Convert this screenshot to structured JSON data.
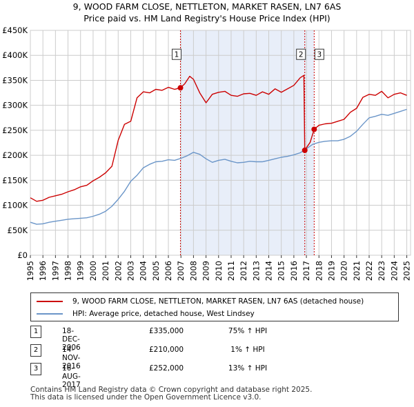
{
  "chart_data": {
    "type": "line",
    "title": "9, WOOD FARM CLOSE, NETTLETON, MARKET RASEN, LN7 6AS",
    "subtitle": "Price paid vs. HM Land Registry's House Price Index (HPI)",
    "xlim": [
      1995,
      2025.3
    ],
    "ylim": [
      0,
      450000
    ],
    "y_ticks": [
      0,
      50000,
      100000,
      150000,
      200000,
      250000,
      300000,
      350000,
      400000,
      450000
    ],
    "y_tick_labels": [
      "£0",
      "£50K",
      "£100K",
      "£150K",
      "£200K",
      "£250K",
      "£300K",
      "£350K",
      "£400K",
      "£450K"
    ],
    "x_tick_labels": [
      "1995",
      "1996",
      "1997",
      "1998",
      "1999",
      "2000",
      "2001",
      "2002",
      "2003",
      "2004",
      "2005",
      "2006",
      "2007",
      "2008",
      "2009",
      "2010",
      "2011",
      "2012",
      "2013",
      "2014",
      "2015",
      "2016",
      "2017",
      "2018",
      "2019",
      "2020",
      "2021",
      "2022",
      "2023",
      "2024",
      "2025"
    ],
    "grid": true,
    "shaded_region": [
      2006.96,
      2017.62
    ],
    "series": [
      {
        "name": "9, WOOD FARM CLOSE, NETTLETON, MARKET RASEN, LN7 6AS (detached house)",
        "color": "#cc0000",
        "x": [
          1995,
          1995.5,
          1996,
          1996.5,
          1997,
          1997.5,
          1998,
          1998.5,
          1999,
          1999.5,
          2000,
          2000.5,
          2001,
          2001.5,
          2002,
          2002.5,
          2003,
          2003.5,
          2004,
          2004.5,
          2005,
          2005.5,
          2006,
          2006.5,
          2006.96,
          2007.3,
          2007.7,
          2008,
          2008.5,
          2009,
          2009.5,
          2010,
          2010.5,
          2011,
          2011.5,
          2012,
          2012.5,
          2013,
          2013.5,
          2014,
          2014.5,
          2015,
          2015.5,
          2016,
          2016.5,
          2016.8,
          2016.87,
          2017,
          2017.3,
          2017.62,
          2018,
          2018.5,
          2019,
          2019.5,
          2020,
          2020.5,
          2021,
          2021.5,
          2022,
          2022.5,
          2023,
          2023.5,
          2024,
          2024.5,
          2025
        ],
        "values": [
          115000,
          108000,
          110000,
          116000,
          119000,
          122000,
          127000,
          131000,
          137000,
          140000,
          149000,
          156000,
          165000,
          178000,
          230000,
          262000,
          268000,
          315000,
          327000,
          325000,
          332000,
          330000,
          336000,
          332000,
          335000,
          343000,
          358000,
          352000,
          325000,
          305000,
          322000,
          326000,
          328000,
          320000,
          318000,
          323000,
          324000,
          320000,
          327000,
          322000,
          333000,
          326000,
          333000,
          340000,
          355000,
          360000,
          210000,
          215000,
          226000,
          252000,
          260000,
          263000,
          264000,
          268000,
          272000,
          286000,
          294000,
          316000,
          322000,
          320000,
          328000,
          315000,
          322000,
          325000,
          320000
        ]
      },
      {
        "name": "HPI: Average price, detached house, West Lindsey",
        "color": "#6a95c8",
        "x": [
          1995,
          1995.5,
          1996,
          1996.5,
          1997,
          1997.5,
          1998,
          1998.5,
          1999,
          1999.5,
          2000,
          2000.5,
          2001,
          2001.5,
          2002,
          2002.5,
          2003,
          2003.5,
          2004,
          2004.5,
          2005,
          2005.5,
          2006,
          2006.5,
          2007,
          2007.5,
          2008,
          2008.5,
          2009,
          2009.5,
          2010,
          2010.5,
          2011,
          2011.5,
          2012,
          2012.5,
          2013,
          2013.5,
          2014,
          2014.5,
          2015,
          2015.5,
          2016,
          2016.5,
          2017,
          2017.5,
          2018,
          2018.5,
          2019,
          2019.5,
          2020,
          2020.5,
          2021,
          2021.5,
          2022,
          2022.5,
          2023,
          2023.5,
          2024,
          2024.5,
          2025
        ],
        "values": [
          66000,
          62000,
          63000,
          66000,
          68000,
          70000,
          72000,
          73000,
          74000,
          75000,
          78000,
          82000,
          88000,
          98000,
          112000,
          128000,
          148000,
          160000,
          175000,
          182000,
          187000,
          188000,
          191000,
          190000,
          194000,
          199000,
          206000,
          202000,
          193000,
          186000,
          190000,
          192000,
          188000,
          185000,
          186000,
          188000,
          187000,
          187000,
          190000,
          193000,
          196000,
          198000,
          201000,
          205000,
          213000,
          222000,
          226000,
          228000,
          229000,
          229000,
          232000,
          238000,
          248000,
          262000,
          275000,
          278000,
          282000,
          280000,
          284000,
          288000,
          292000
        ]
      }
    ],
    "annotations": [
      {
        "label": "1",
        "x": 2006.96,
        "y": 335000
      },
      {
        "label": "2",
        "x": 2016.87,
        "y": 210000
      },
      {
        "label": "3",
        "x": 2017.62,
        "y": 252000
      }
    ]
  },
  "legend": {
    "property_label": "9, WOOD FARM CLOSE, NETTLETON, MARKET RASEN, LN7 6AS (detached house)",
    "hpi_label": "HPI: Average price, detached house, West Lindsey"
  },
  "transactions": [
    {
      "num": "1",
      "date": "18-DEC-2006",
      "price": "£335,000",
      "hpi": "75% ↑ HPI"
    },
    {
      "num": "2",
      "date": "14-NOV-2016",
      "price": "£210,000",
      "hpi": "1% ↑ HPI"
    },
    {
      "num": "3",
      "date": "16-AUG-2017",
      "price": "£252,000",
      "hpi": "13% ↑ HPI"
    }
  ],
  "footer": {
    "line1": "Contains HM Land Registry data © Crown copyright and database right 2025.",
    "line2": "This data is licensed under the Open Government Licence v3.0."
  }
}
